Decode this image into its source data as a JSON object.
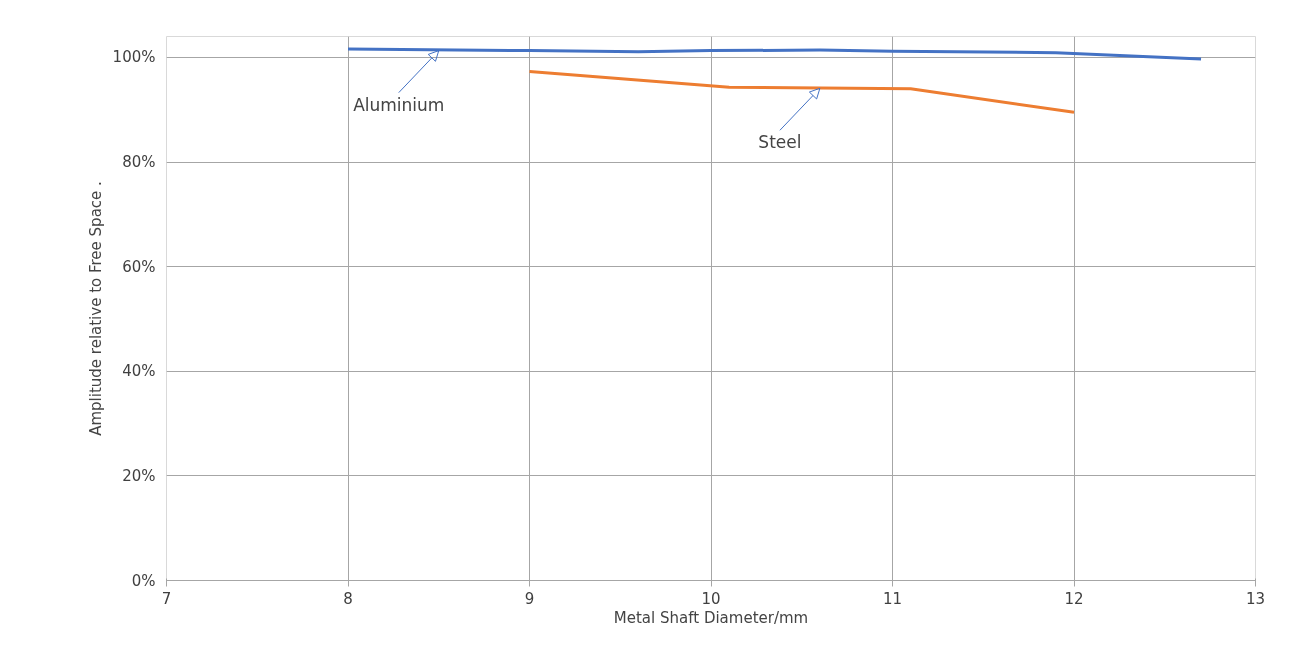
{
  "chart_data": {
    "type": "line",
    "xlabel": "Metal Shaft Diameter/mm",
    "ylabel": "Amplitude relative to Free Space .",
    "series": [
      {
        "color": "#4472c4",
        "x": [
          8,
          9,
          9.6,
          10,
          10.6,
          11,
          11.9,
          12.7
        ],
        "values": [
          101.6,
          101.3,
          101.1,
          101.3,
          101.4,
          101.2,
          100.9,
          99.7
        ]
      },
      {
        "color": "#ed7d31",
        "x": [
          9,
          10.1,
          11.1,
          12
        ],
        "values": [
          97.3,
          94.3,
          94.0,
          89.5
        ]
      }
    ],
    "annotations": [
      {
        "text": "Aluminium",
        "x": 8.5,
        "y": 101.3
      },
      {
        "text": "Steel",
        "x": 10.6,
        "y": 94.1
      }
    ],
    "xlim": [
      7,
      13
    ],
    "ylim": [
      0,
      104
    ],
    "xticks": [
      7,
      8,
      9,
      10,
      11,
      12,
      13
    ],
    "yticks": [
      {
        "value": 0,
        "label": "0%"
      },
      {
        "value": 20,
        "label": "20%"
      },
      {
        "value": 40,
        "label": "40%"
      },
      {
        "value": 60,
        "label": "60%"
      },
      {
        "value": 80,
        "label": "80%"
      },
      {
        "value": 100,
        "label": "100%"
      }
    ],
    "grid": true,
    "marker": "none",
    "line_style": "solid"
  }
}
